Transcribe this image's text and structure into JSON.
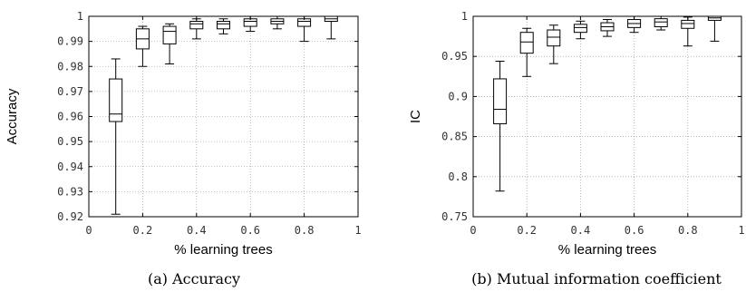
{
  "chart_data": [
    {
      "type": "box",
      "caption": "(a) Accuracy",
      "xlabel": "% learning trees",
      "ylabel": "Accuracy",
      "xlim": [
        0,
        1
      ],
      "ylim": [
        0.92,
        1
      ],
      "x_ticks": [
        "0",
        "0.2",
        "0.4",
        "0.6",
        "0.8",
        "1"
      ],
      "x_tick_values": [
        0,
        0.2,
        0.4,
        0.6,
        0.8,
        1
      ],
      "y_ticks": [
        "0.92",
        "0.93",
        "0.94",
        "0.95",
        "0.96",
        "0.97",
        "0.98",
        "0.99",
        "1"
      ],
      "y_tick_values": [
        0.92,
        0.93,
        0.94,
        0.95,
        0.96,
        0.97,
        0.98,
        0.99,
        1.0
      ],
      "grid": true,
      "boxes": [
        {
          "x": 0.1,
          "min": 0.921,
          "q1": 0.958,
          "median": 0.961,
          "q3": 0.975,
          "max": 0.983
        },
        {
          "x": 0.2,
          "min": 0.98,
          "q1": 0.987,
          "median": 0.991,
          "q3": 0.995,
          "max": 0.996
        },
        {
          "x": 0.3,
          "min": 0.981,
          "q1": 0.989,
          "median": 0.994,
          "q3": 0.996,
          "max": 0.997
        },
        {
          "x": 0.4,
          "min": 0.991,
          "q1": 0.995,
          "median": 0.997,
          "q3": 0.998,
          "max": 0.999
        },
        {
          "x": 0.5,
          "min": 0.993,
          "q1": 0.995,
          "median": 0.997,
          "q3": 0.998,
          "max": 0.999
        },
        {
          "x": 0.6,
          "min": 0.994,
          "q1": 0.996,
          "median": 0.998,
          "q3": 0.999,
          "max": 1.0
        },
        {
          "x": 0.7,
          "min": 0.995,
          "q1": 0.997,
          "median": 0.998,
          "q3": 0.999,
          "max": 1.0
        },
        {
          "x": 0.8,
          "min": 0.99,
          "q1": 0.996,
          "median": 0.998,
          "q3": 0.999,
          "max": 1.0
        },
        {
          "x": 0.9,
          "min": 0.991,
          "q1": 0.998,
          "median": 0.999,
          "q3": 1.0,
          "max": 1.0
        }
      ]
    },
    {
      "type": "box",
      "caption": "(b) Mutual information coefficient",
      "xlabel": "% learning trees",
      "ylabel": "IC",
      "xlim": [
        0,
        1
      ],
      "ylim": [
        0.75,
        1
      ],
      "x_ticks": [
        "0",
        "0.2",
        "0.4",
        "0.6",
        "0.8",
        "1"
      ],
      "x_tick_values": [
        0,
        0.2,
        0.4,
        0.6,
        0.8,
        1
      ],
      "y_ticks": [
        "0.75",
        "0.8",
        "0.85",
        "0.9",
        "0.95",
        "1"
      ],
      "y_tick_values": [
        0.75,
        0.8,
        0.85,
        0.9,
        0.95,
        1.0
      ],
      "grid": true,
      "boxes": [
        {
          "x": 0.1,
          "min": 0.782,
          "q1": 0.866,
          "median": 0.884,
          "q3": 0.922,
          "max": 0.944
        },
        {
          "x": 0.2,
          "min": 0.925,
          "q1": 0.954,
          "median": 0.968,
          "q3": 0.98,
          "max": 0.985
        },
        {
          "x": 0.3,
          "min": 0.941,
          "q1": 0.963,
          "median": 0.974,
          "q3": 0.983,
          "max": 0.989
        },
        {
          "x": 0.4,
          "min": 0.972,
          "q1": 0.98,
          "median": 0.986,
          "q3": 0.99,
          "max": 0.994
        },
        {
          "x": 0.5,
          "min": 0.975,
          "q1": 0.982,
          "median": 0.987,
          "q3": 0.992,
          "max": 0.996
        },
        {
          "x": 0.6,
          "min": 0.98,
          "q1": 0.986,
          "median": 0.991,
          "q3": 0.996,
          "max": 1.0
        },
        {
          "x": 0.7,
          "min": 0.983,
          "q1": 0.987,
          "median": 0.993,
          "q3": 0.997,
          "max": 1.0
        },
        {
          "x": 0.8,
          "min": 0.963,
          "q1": 0.985,
          "median": 0.991,
          "q3": 0.995,
          "max": 0.999
        },
        {
          "x": 0.9,
          "min": 0.969,
          "q1": 0.995,
          "median": 0.998,
          "q3": 1.0,
          "max": 1.0
        }
      ]
    }
  ]
}
